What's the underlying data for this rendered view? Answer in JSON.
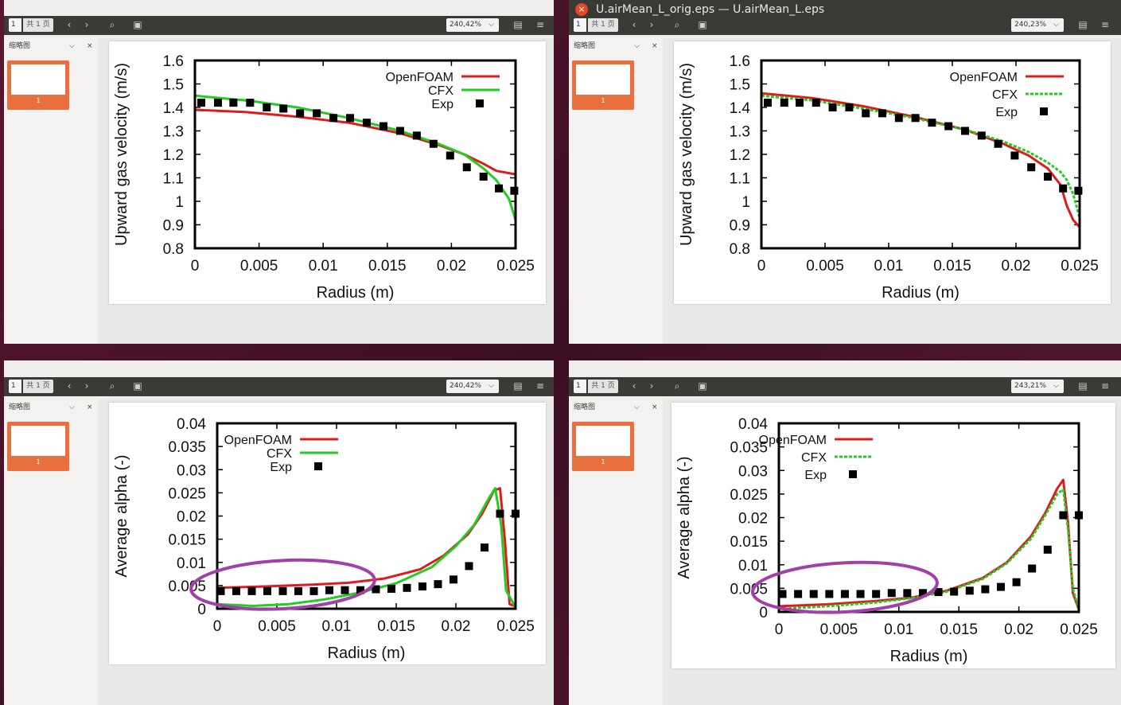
{
  "windows": [
    {
      "id": "top-left",
      "title": "",
      "page_input": "1",
      "page_of": "共 1 页",
      "zoom": "240,42%",
      "sidebar_label": "缩略图",
      "thumb_number": "1",
      "chart_ref": 0
    },
    {
      "id": "top-right",
      "title": "U.airMean_L_orig.eps — U.airMean_L.eps",
      "page_input": "1",
      "page_of": "共 1 页",
      "zoom": "240,23%",
      "sidebar_label": "缩略图",
      "thumb_number": "1",
      "chart_ref": 1
    },
    {
      "id": "bottom-left",
      "title": "",
      "page_input": "1",
      "page_of": "共 1 页",
      "zoom": "240,42%",
      "sidebar_label": "缩略图",
      "thumb_number": "1",
      "chart_ref": 2
    },
    {
      "id": "bottom-right",
      "title": "",
      "page_input": "1",
      "page_of": "共 1 页",
      "zoom": "243,21%",
      "sidebar_label": "缩略图",
      "thumb_number": "1",
      "chart_ref": 3
    }
  ],
  "colors": {
    "openfoam": "#dd1c1c",
    "cfx": "#22cc22",
    "exp": "#000000",
    "annotation": "#a040a8"
  },
  "chart_data": [
    {
      "type": "line",
      "xlabel": "Radius (m)",
      "ylabel": "Upward gas velocity (m/s)",
      "xlim": [
        0,
        0.025
      ],
      "ylim": [
        0.8,
        1.6
      ],
      "xticks": [
        "0",
        "0.005",
        "0.01",
        "0.015",
        "0.02",
        "0.025"
      ],
      "yticks": [
        "0.8",
        "0.9",
        "1",
        "1.1",
        "1.2",
        "1.3",
        "1.4",
        "1.5",
        "1.6"
      ],
      "cfx_dashed": false,
      "legend": {
        "position": "top-right",
        "entries": [
          "OpenFOAM",
          "CFX",
          "Exp"
        ]
      },
      "series": [
        {
          "name": "OpenFOAM",
          "style": "line",
          "x": [
            0,
            0.004,
            0.008,
            0.012,
            0.016,
            0.019,
            0.021,
            0.0225,
            0.0235,
            0.0245,
            0.025
          ],
          "y": [
            1.39,
            1.38,
            1.36,
            1.335,
            1.29,
            1.24,
            1.2,
            1.16,
            1.13,
            1.12,
            1.115
          ]
        },
        {
          "name": "CFX",
          "style": "line",
          "x": [
            0,
            0.004,
            0.008,
            0.012,
            0.016,
            0.019,
            0.021,
            0.0225,
            0.0235,
            0.0245,
            0.025
          ],
          "y": [
            1.45,
            1.43,
            1.4,
            1.355,
            1.3,
            1.245,
            1.2,
            1.14,
            1.09,
            1.01,
            0.92
          ]
        },
        {
          "name": "Exp",
          "style": "markers",
          "x": [
            0.0005,
            0.0018,
            0.003,
            0.0043,
            0.0056,
            0.0069,
            0.0082,
            0.0095,
            0.0108,
            0.0121,
            0.0134,
            0.0147,
            0.016,
            0.0173,
            0.0186,
            0.0199,
            0.0212,
            0.0225,
            0.0237,
            0.0249
          ],
          "y": [
            1.42,
            1.42,
            1.42,
            1.42,
            1.4,
            1.395,
            1.375,
            1.375,
            1.355,
            1.355,
            1.335,
            1.32,
            1.3,
            1.28,
            1.245,
            1.195,
            1.145,
            1.105,
            1.055,
            1.045
          ]
        }
      ]
    },
    {
      "type": "line",
      "xlabel": "Radius (m)",
      "ylabel": "Upward gas velocity (m/s)",
      "xlim": [
        0,
        0.025
      ],
      "ylim": [
        0.8,
        1.6
      ],
      "xticks": [
        "0",
        "0.005",
        "0.01",
        "0.015",
        "0.02",
        "0.025"
      ],
      "yticks": [
        "0.8",
        "0.9",
        "1",
        "1.1",
        "1.2",
        "1.3",
        "1.4",
        "1.5",
        "1.6"
      ],
      "cfx_dashed": true,
      "legend": {
        "position": "top-right",
        "entries": [
          "OpenFOAM",
          "CFX",
          "Exp"
        ]
      },
      "series": [
        {
          "name": "OpenFOAM",
          "style": "line",
          "x": [
            0,
            0.004,
            0.008,
            0.012,
            0.016,
            0.019,
            0.021,
            0.0225,
            0.0235,
            0.024,
            0.0245,
            0.025
          ],
          "y": [
            1.46,
            1.44,
            1.405,
            1.36,
            1.305,
            1.245,
            1.195,
            1.14,
            1.07,
            0.98,
            0.92,
            0.89
          ]
        },
        {
          "name": "CFX",
          "style": "line",
          "x": [
            0,
            0.004,
            0.008,
            0.012,
            0.016,
            0.019,
            0.021,
            0.0225,
            0.0235,
            0.024,
            0.0245,
            0.025
          ],
          "y": [
            1.45,
            1.43,
            1.395,
            1.355,
            1.305,
            1.255,
            1.21,
            1.165,
            1.125,
            1.09,
            1.03,
            0.93
          ]
        },
        {
          "name": "Exp",
          "style": "markers",
          "x": [
            0.0005,
            0.0018,
            0.003,
            0.0043,
            0.0056,
            0.0069,
            0.0082,
            0.0095,
            0.0108,
            0.0121,
            0.0134,
            0.0147,
            0.016,
            0.0173,
            0.0186,
            0.0199,
            0.0212,
            0.0225,
            0.0237,
            0.0249
          ],
          "y": [
            1.42,
            1.42,
            1.42,
            1.42,
            1.4,
            1.4,
            1.375,
            1.375,
            1.355,
            1.355,
            1.335,
            1.32,
            1.3,
            1.28,
            1.245,
            1.195,
            1.145,
            1.105,
            1.055,
            1.045
          ]
        }
      ]
    },
    {
      "type": "line",
      "xlabel": "Radius (m)",
      "ylabel": "Average alpha (-)",
      "xlim": [
        0,
        0.025
      ],
      "ylim": [
        0,
        0.04
      ],
      "xticks": [
        "0",
        "0.005",
        "0.01",
        "0.015",
        "0.02",
        "0.025"
      ],
      "yticks": [
        "0",
        "0.005",
        "0.01",
        "0.015",
        "0.02",
        "0.025",
        "0.03",
        "0.035",
        "0.04"
      ],
      "cfx_dashed": false,
      "legend": {
        "position": "top-left",
        "entries": [
          "OpenFOAM",
          "CFX",
          "Exp"
        ]
      },
      "annotation": {
        "type": "ellipse",
        "cx": 0.0055,
        "cy": 0.0052,
        "rx": 0.0077,
        "ry": 0.0052
      },
      "series": [
        {
          "name": "OpenFOAM",
          "style": "line",
          "x": [
            0,
            0.004,
            0.008,
            0.011,
            0.014,
            0.017,
            0.019,
            0.021,
            0.0222,
            0.0232,
            0.0237,
            0.0241,
            0.0245,
            0.025
          ],
          "y": [
            0.0045,
            0.0048,
            0.0052,
            0.0056,
            0.0065,
            0.0085,
            0.0115,
            0.016,
            0.0205,
            0.0255,
            0.026,
            0.015,
            0.001,
            0.0005
          ]
        },
        {
          "name": "CFX",
          "style": "line",
          "x": [
            0,
            0.003,
            0.006,
            0.009,
            0.012,
            0.015,
            0.018,
            0.02,
            0.0215,
            0.0228,
            0.0233,
            0.0238,
            0.0242,
            0.025
          ],
          "y": [
            0.001,
            0.0006,
            0.001,
            0.002,
            0.0035,
            0.0055,
            0.009,
            0.0135,
            0.018,
            0.024,
            0.026,
            0.018,
            0.004,
            0.0003
          ]
        },
        {
          "name": "Exp",
          "style": "markers",
          "x": [
            0.0003,
            0.0016,
            0.0029,
            0.0042,
            0.0055,
            0.0068,
            0.0081,
            0.0094,
            0.0107,
            0.012,
            0.0133,
            0.0146,
            0.0159,
            0.0172,
            0.0185,
            0.0198,
            0.0211,
            0.0224,
            0.0237,
            0.025
          ],
          "y": [
            0.0038,
            0.0038,
            0.0038,
            0.0038,
            0.0038,
            0.0038,
            0.0038,
            0.004,
            0.004,
            0.004,
            0.0042,
            0.0043,
            0.0045,
            0.0048,
            0.0053,
            0.0063,
            0.0092,
            0.0132,
            0.0205,
            0.0205
          ]
        }
      ]
    },
    {
      "type": "line",
      "xlabel": "Radius (m)",
      "ylabel": "Average alpha (-)",
      "xlim": [
        0,
        0.025
      ],
      "ylim": [
        0,
        0.04
      ],
      "xticks": [
        "0",
        "0.005",
        "0.01",
        "0.015",
        "0.02",
        "0.025"
      ],
      "yticks": [
        "0",
        "0.005",
        "0.01",
        "0.015",
        "0.02",
        "0.025",
        "0.03",
        "0.035",
        "0.04"
      ],
      "cfx_dashed": true,
      "legend": {
        "position": "top-left",
        "entries": [
          "OpenFOAM",
          "CFX",
          "Exp"
        ]
      },
      "annotation": {
        "type": "ellipse",
        "cx": 0.0055,
        "cy": 0.0052,
        "rx": 0.0077,
        "ry": 0.0052
      },
      "series": [
        {
          "name": "OpenFOAM",
          "style": "line",
          "x": [
            0,
            0.004,
            0.008,
            0.011,
            0.014,
            0.017,
            0.019,
            0.021,
            0.0222,
            0.0232,
            0.0237,
            0.0241,
            0.0245,
            0.025
          ],
          "y": [
            0.0012,
            0.0016,
            0.0023,
            0.003,
            0.0045,
            0.0072,
            0.0105,
            0.016,
            0.021,
            0.0262,
            0.028,
            0.019,
            0.004,
            0.0005
          ]
        },
        {
          "name": "CFX",
          "style": "line",
          "x": [
            0,
            0.004,
            0.008,
            0.011,
            0.014,
            0.017,
            0.019,
            0.021,
            0.0222,
            0.0232,
            0.0237,
            0.0241,
            0.0245,
            0.025
          ],
          "y": [
            0.0006,
            0.0012,
            0.002,
            0.0029,
            0.0043,
            0.007,
            0.0103,
            0.0155,
            0.0205,
            0.025,
            0.026,
            0.0175,
            0.005,
            0.0005
          ]
        },
        {
          "name": "Exp",
          "style": "markers",
          "x": [
            0.0003,
            0.0016,
            0.0029,
            0.0042,
            0.0055,
            0.0068,
            0.0081,
            0.0094,
            0.0107,
            0.012,
            0.0133,
            0.0146,
            0.0159,
            0.0172,
            0.0185,
            0.0198,
            0.0211,
            0.0224,
            0.0237,
            0.025
          ],
          "y": [
            0.0038,
            0.0038,
            0.0038,
            0.0038,
            0.0038,
            0.0038,
            0.0038,
            0.004,
            0.004,
            0.004,
            0.0042,
            0.0043,
            0.0045,
            0.0048,
            0.0053,
            0.0063,
            0.0092,
            0.0132,
            0.0205,
            0.0205
          ]
        }
      ]
    }
  ]
}
